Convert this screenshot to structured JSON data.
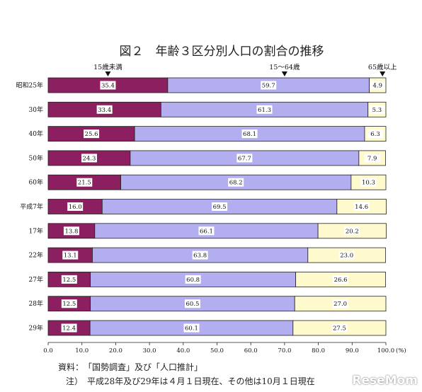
{
  "chart_data": {
    "type": "bar",
    "orientation": "horizontal",
    "stacked": true,
    "title": "図２　年齢３区分別人口の割合の推移",
    "categories": [
      "昭和25年",
      "30年",
      "40年",
      "50年",
      "60年",
      "平成7年",
      "17年",
      "22年",
      "27年",
      "28年",
      "29年"
    ],
    "series": [
      {
        "name": "15歳未満",
        "color": "#8b1f5f",
        "values": [
          35.4,
          33.4,
          25.6,
          24.3,
          21.5,
          16.0,
          13.8,
          13.1,
          12.5,
          12.5,
          12.4
        ]
      },
      {
        "name": "15～64歳",
        "color": "#b3aef0",
        "values": [
          59.7,
          61.3,
          68.1,
          67.7,
          68.2,
          69.5,
          66.1,
          63.8,
          60.8,
          60.5,
          60.1
        ]
      },
      {
        "name": "65歳以上",
        "color": "#fffacd",
        "values": [
          4.9,
          5.3,
          6.3,
          7.9,
          10.3,
          14.6,
          20.2,
          23.0,
          26.6,
          27.0,
          27.5
        ]
      }
    ],
    "xlim": [
      0,
      100
    ],
    "x_ticks": [
      "0.0",
      "10.0",
      "20.0",
      "30.0",
      "40.0",
      "50.0",
      "60.0",
      "70.0",
      "80.0",
      "90.0",
      "100.0"
    ],
    "x_unit": "(%)",
    "series_label_markers": [
      17.7,
      70,
      99
    ],
    "grid": false
  },
  "notes": {
    "source": "資料：　「国勢調査」及び「人口推計」",
    "note": "注）　平成28年及び29年は４月１日現在、その他は10月１日現在"
  },
  "logo_text": "ReseMom"
}
